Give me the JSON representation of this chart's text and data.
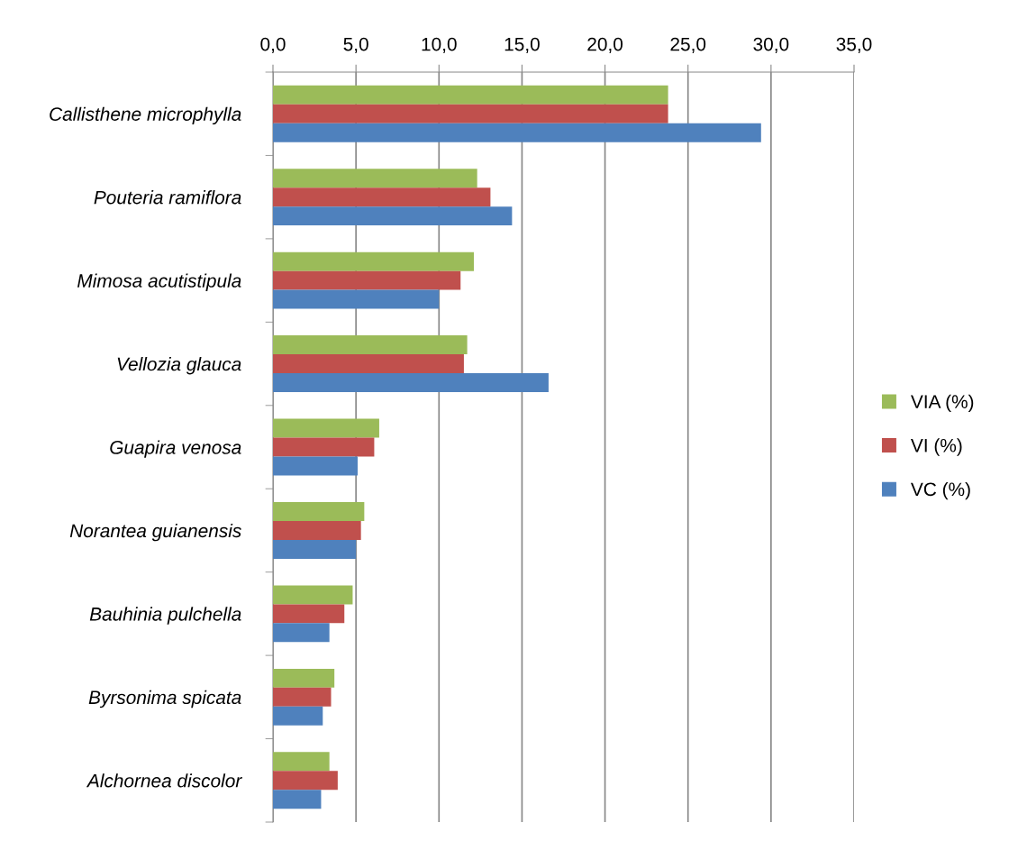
{
  "chart_data": {
    "type": "bar",
    "orientation": "horizontal",
    "categories": [
      "Callisthene microphylla",
      "Pouteria ramiflora",
      "Mimosa acutistipula",
      "Vellozia glauca",
      "Guapira venosa",
      "Norantea guianensis",
      "Bauhinia pulchella",
      "Byrsonima spicata",
      "Alchornea discolor"
    ],
    "series": [
      {
        "name": "VIA (%)",
        "color": "#9bbb59",
        "values": [
          23.8,
          12.3,
          12.1,
          11.7,
          6.4,
          5.5,
          4.8,
          3.7,
          3.4
        ]
      },
      {
        "name": "VI (%)",
        "color": "#c0504d",
        "values": [
          23.8,
          13.1,
          11.3,
          11.5,
          6.1,
          5.3,
          4.3,
          3.5,
          3.9
        ]
      },
      {
        "name": "VC (%)",
        "color": "#4f81bd",
        "values": [
          29.4,
          14.4,
          10.0,
          16.6,
          5.1,
          5.0,
          3.4,
          3.0,
          2.9
        ]
      }
    ],
    "xlim": [
      0,
      35
    ],
    "xticks": [
      {
        "value": 0,
        "label": "0,0"
      },
      {
        "value": 5,
        "label": "5,0"
      },
      {
        "value": 10,
        "label": "10,0"
      },
      {
        "value": 15,
        "label": "15,0"
      },
      {
        "value": 20,
        "label": "20,0"
      },
      {
        "value": 25,
        "label": "25,0"
      },
      {
        "value": 30,
        "label": "30,0"
      },
      {
        "value": 35,
        "label": "35,0"
      }
    ],
    "grid": "x",
    "legend": "right"
  }
}
